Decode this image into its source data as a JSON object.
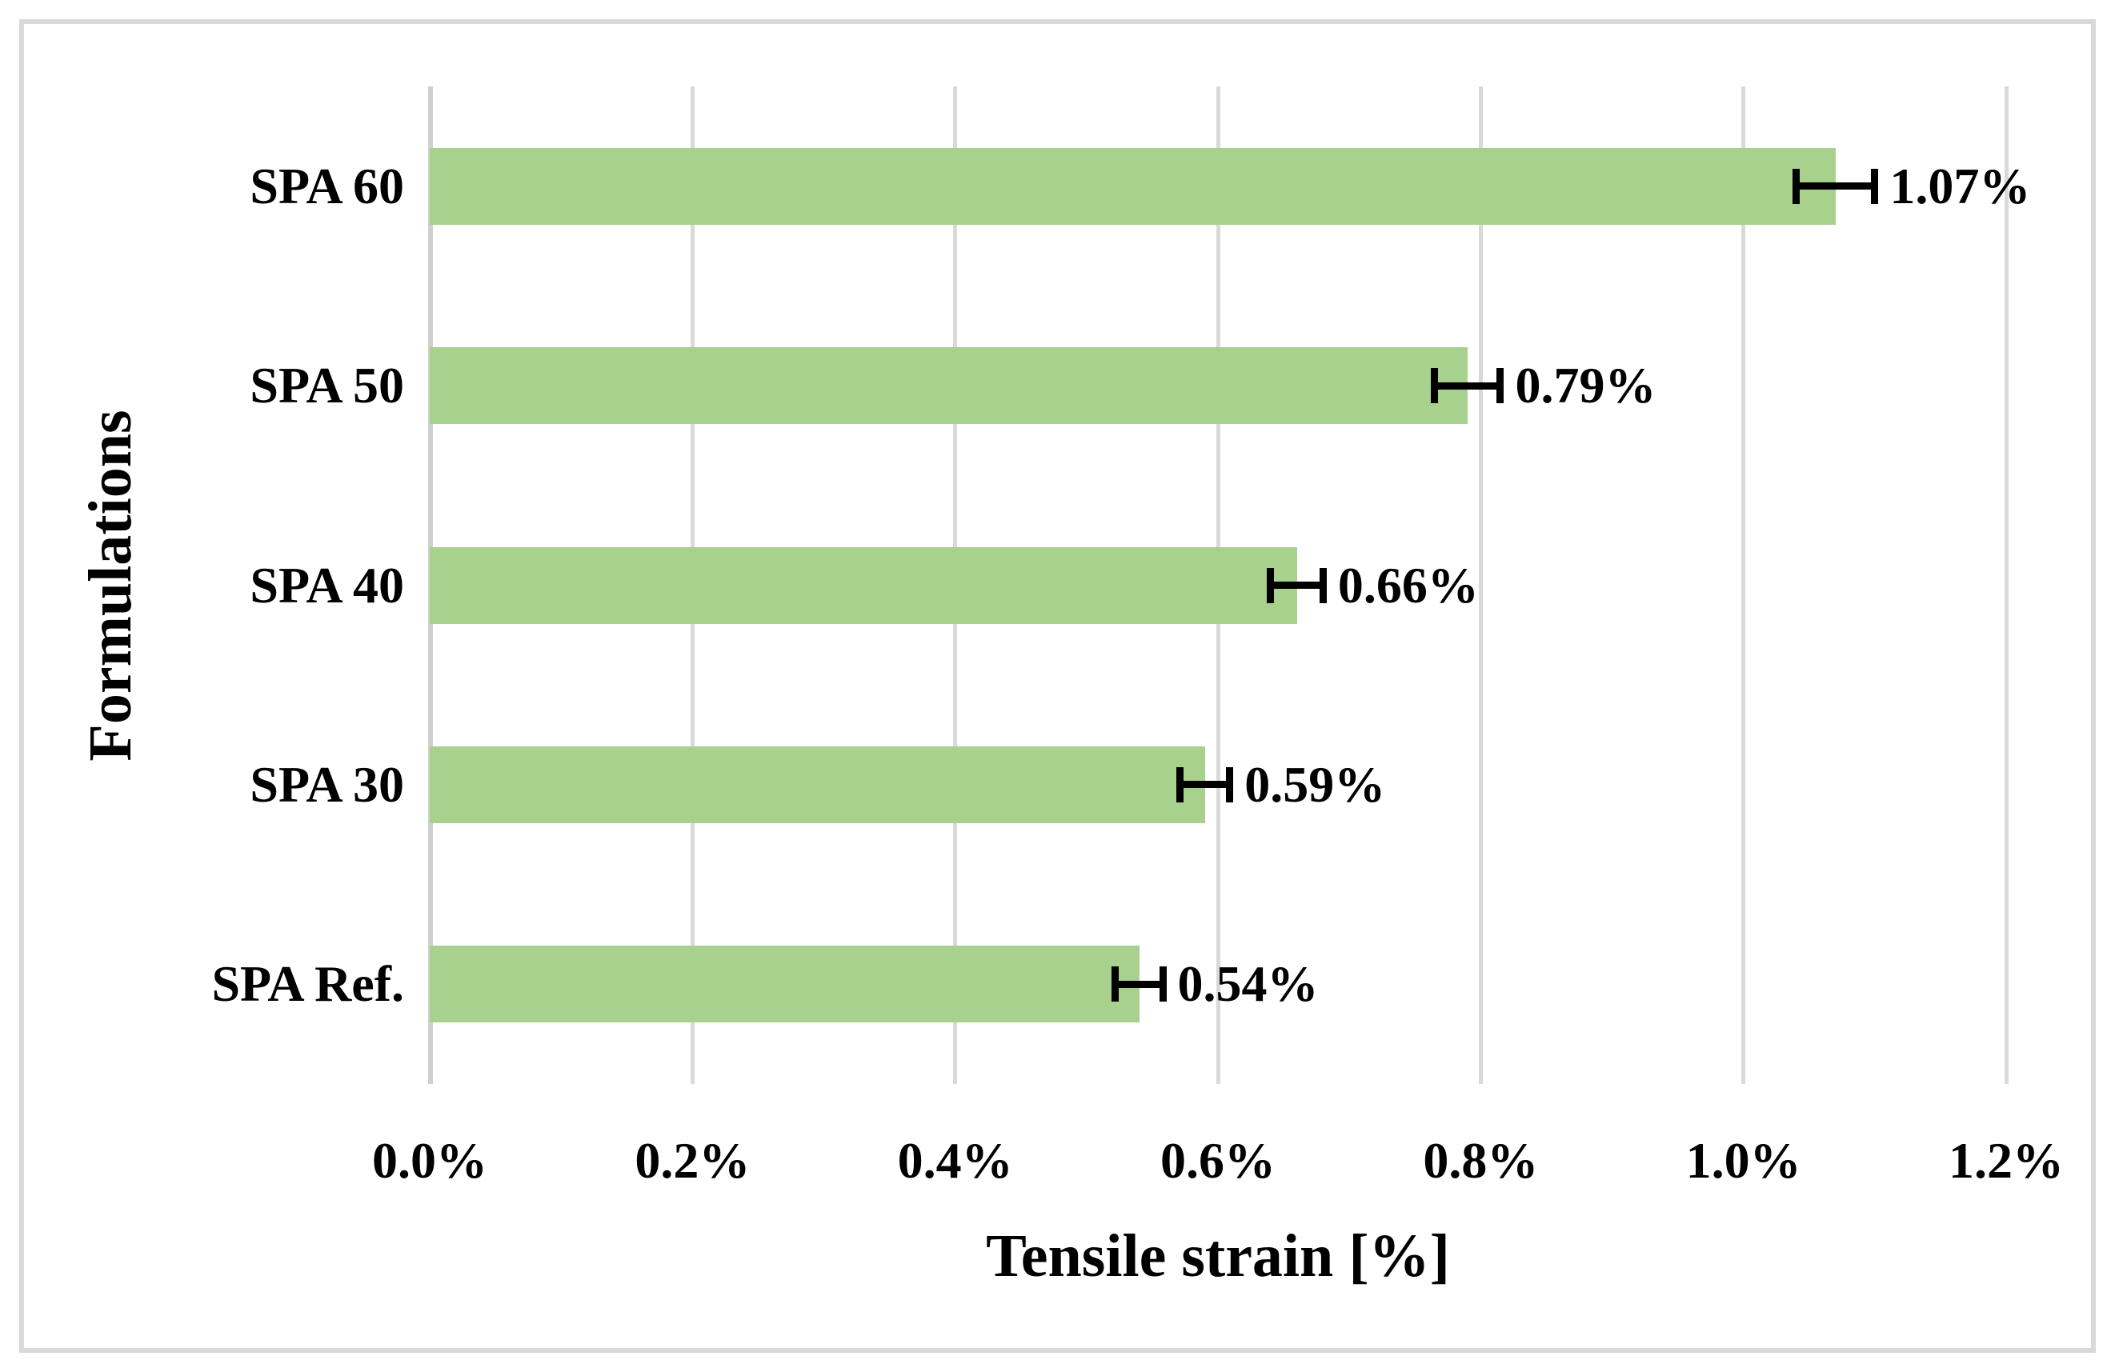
{
  "chart_data": {
    "type": "bar",
    "orientation": "horizontal",
    "title": "",
    "xlabel": "Tensile strain [%]",
    "ylabel": "Formulations",
    "categories": [
      "SPA 60",
      "SPA 50",
      "SPA 40",
      "SPA 30",
      "SPA Ref."
    ],
    "values": [
      1.07,
      0.79,
      0.66,
      0.59,
      0.54
    ],
    "errors": [
      0.03,
      0.025,
      0.02,
      0.019,
      0.018
    ],
    "data_labels": [
      "1.07%",
      "0.79%",
      "0.66%",
      "0.59%",
      "0.54%"
    ],
    "xlim": [
      0,
      1.2
    ],
    "xticks": [
      0,
      0.2,
      0.4,
      0.6,
      0.8,
      1.0,
      1.2
    ],
    "xtick_labels": [
      "0.0%",
      "0.2%",
      "0.4%",
      "0.6%",
      "0.8%",
      "1.0%",
      "1.2%"
    ],
    "grid": true,
    "legend": false,
    "bar_color": "#a9d18e",
    "gridline_color": "#d9d9d9",
    "error_bar_color": "#000000",
    "text_color": "#000000",
    "frame_border_color": "#d9d9d9"
  }
}
